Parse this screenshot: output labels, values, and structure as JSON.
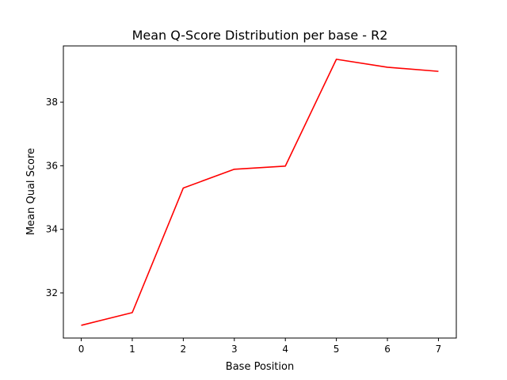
{
  "chart_data": {
    "type": "line",
    "title": "Mean Q-Score Distribution per base - R2",
    "xlabel": "Base Position",
    "ylabel": "Mean Qual Score",
    "x": [
      0,
      1,
      2,
      3,
      4,
      5,
      6,
      7
    ],
    "series": [
      {
        "values": [
          30.98,
          31.38,
          35.3,
          35.89,
          35.99,
          39.35,
          39.1,
          38.97
        ],
        "color": "#ff0000"
      }
    ],
    "xlim": [
      -0.35,
      7.35
    ],
    "ylim": [
      30.58,
      39.77
    ],
    "xticks": [
      0,
      1,
      2,
      3,
      4,
      5,
      6,
      7
    ],
    "xtick_labels": [
      "0",
      "1",
      "2",
      "3",
      "4",
      "5",
      "6",
      "7"
    ],
    "yticks": [
      32,
      34,
      36,
      38
    ],
    "ytick_labels": [
      "32",
      "34",
      "36",
      "38"
    ],
    "grid": false,
    "legend": null
  }
}
